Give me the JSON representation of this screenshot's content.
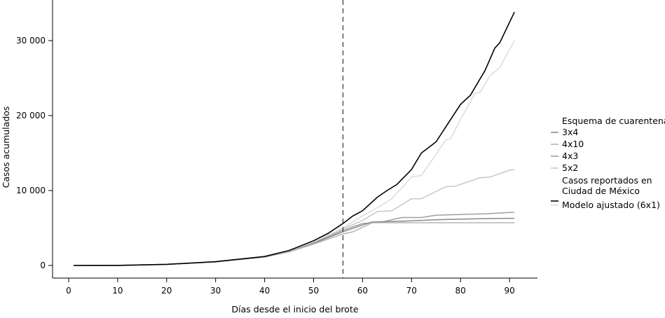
{
  "chart_data": {
    "type": "line",
    "xlabel": "Días desde el inicio del brote",
    "ylabel": "Casos acumulados",
    "xlim": [
      -3,
      96
    ],
    "ylim": [
      -1500,
      35500
    ],
    "xticks": [
      0,
      10,
      20,
      30,
      40,
      50,
      60,
      70,
      80,
      90
    ],
    "xtick_labels": [
      "0",
      "10",
      "20",
      "30",
      "40",
      "50",
      "60",
      "70",
      "80",
      "90"
    ],
    "yticks": [
      0,
      10000,
      20000,
      30000
    ],
    "ytick_labels": [
      "0",
      "10 000",
      "20 000",
      "30 000"
    ],
    "grid": false,
    "vline": {
      "x": 56,
      "style": "dashed"
    },
    "legend": {
      "title": "Esquema de cuarentena",
      "position": "right"
    },
    "series": [
      {
        "name": "3x4",
        "color": "#8a8a8a",
        "x": [
          1,
          10,
          20,
          30,
          40,
          45,
          50,
          56,
          60,
          62,
          68,
          75,
          85,
          91
        ],
        "y": [
          0,
          10,
          150,
          480,
          1150,
          1850,
          2950,
          4500,
          5400,
          5800,
          5900,
          6100,
          6250,
          6300
        ]
      },
      {
        "name": "4x10",
        "color": "#b5b5b5",
        "x": [
          1,
          10,
          20,
          30,
          40,
          45,
          50,
          56,
          58,
          62,
          70,
          80,
          91
        ],
        "y": [
          0,
          10,
          150,
          470,
          1100,
          1800,
          2850,
          4200,
          4500,
          5700,
          5700,
          5700,
          5700
        ]
      },
      {
        "name": "4x3",
        "color": "#a0a0a0",
        "x": [
          1,
          10,
          20,
          30,
          40,
          45,
          50,
          56,
          60,
          64,
          68,
          72,
          75,
          80,
          85,
          91
        ],
        "y": [
          0,
          10,
          150,
          480,
          1150,
          1850,
          3000,
          4700,
          5600,
          5800,
          6400,
          6400,
          6700,
          6800,
          6900,
          7100
        ]
      },
      {
        "name": "5x2",
        "color": "#c8c8c8",
        "x": [
          1,
          10,
          20,
          30,
          40,
          45,
          50,
          56,
          60,
          63,
          66,
          70,
          72,
          77,
          79,
          84,
          86,
          90,
          91
        ],
        "y": [
          0,
          10,
          150,
          490,
          1200,
          1900,
          3100,
          4900,
          6000,
          7200,
          7300,
          8900,
          8900,
          10500,
          10600,
          11700,
          11800,
          12700,
          12800
        ]
      },
      {
        "name": "Casos reportados en Ciudad de México",
        "color": "#000000",
        "x": [
          1,
          10,
          20,
          30,
          40,
          45,
          50,
          53,
          56,
          58,
          60,
          63,
          65,
          67,
          70,
          72,
          75,
          78,
          80,
          82,
          85,
          87,
          88,
          91
        ],
        "y": [
          0,
          10,
          150,
          500,
          1200,
          2000,
          3300,
          4300,
          5600,
          6600,
          7300,
          9100,
          10000,
          10800,
          12800,
          15000,
          16500,
          19500,
          21500,
          22700,
          26000,
          29000,
          29700,
          33800
        ]
      },
      {
        "name": "Modelo ajustado (6x1)",
        "color": "#dcdcdc",
        "x": [
          1,
          10,
          20,
          30,
          40,
          45,
          50,
          56,
          60,
          63,
          66,
          70,
          72,
          75,
          77,
          78,
          80,
          83,
          84,
          86,
          88,
          91
        ],
        "y": [
          0,
          10,
          150,
          500,
          1200,
          1950,
          3150,
          5000,
          6600,
          7700,
          8900,
          11800,
          12000,
          14800,
          16800,
          16900,
          19500,
          23000,
          23100,
          25300,
          26400,
          30000
        ]
      }
    ]
  }
}
